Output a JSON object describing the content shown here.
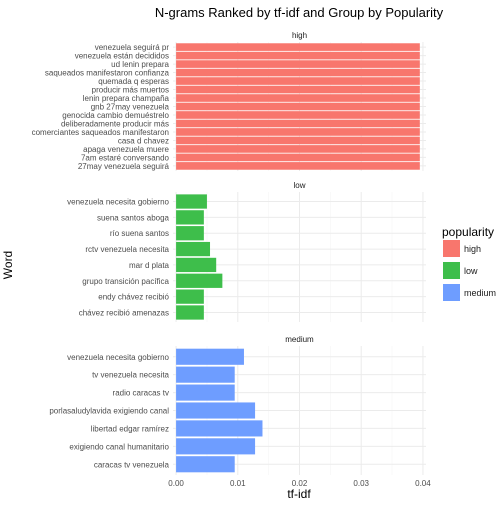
{
  "chart_data": {
    "type": "bar",
    "orientation": "horizontal",
    "title": "N-grams Ranked by tf-idf and Group by Popularity",
    "xlabel": "tf-idf",
    "ylabel": "Word",
    "xlim": [
      -0.0005,
      0.0405
    ],
    "x_ticks": [
      0.0,
      0.01,
      0.02,
      0.03,
      0.04
    ],
    "x_tick_labels": [
      "0.00",
      "0.01",
      "0.02",
      "0.03",
      "0.04"
    ],
    "grid": true,
    "legend": {
      "title": "popularity",
      "position": "right",
      "entries": [
        {
          "label": "high",
          "color": "#F8766D"
        },
        {
          "label": "low",
          "color": "#3EBE4B"
        },
        {
          "label": "medium",
          "color": "#6E9DFF"
        }
      ]
    },
    "panels": [
      {
        "strip": "high",
        "color": "#F8766D",
        "categories": [
          "venezuela seguirá pr",
          "venezuela están decididos",
          "ud lenin prepara",
          "saqueados manifestaron confianza",
          "quemada q esperas",
          "producir más muertos",
          "lenin prepara champaña",
          "gnb 27may venezuela",
          "genocida cambio demuéstrelo",
          "deliberadamente producir más",
          "comerciantes saqueados manifestaron",
          "casa d chavez",
          "apaga venezuela muere",
          "7am estaré conversando",
          "27may venezuela seguirá"
        ],
        "values": [
          0.0395,
          0.0395,
          0.0395,
          0.0395,
          0.0395,
          0.0395,
          0.0395,
          0.0395,
          0.0395,
          0.0395,
          0.0395,
          0.0395,
          0.0395,
          0.0395,
          0.0395
        ]
      },
      {
        "strip": "low",
        "color": "#3EBE4B",
        "categories": [
          "venezuela necesita gobierno",
          "suena santos aboga",
          "río suena santos",
          "rctv venezuela necesita",
          "mar d plata",
          "grupo transición pacífica",
          "endy chávez recibió",
          "chávez recibió amenazas"
        ],
        "values": [
          0.005,
          0.0045,
          0.0045,
          0.0055,
          0.0065,
          0.0075,
          0.0045,
          0.0045
        ]
      },
      {
        "strip": "medium",
        "color": "#6E9DFF",
        "categories": [
          "venezuela necesita gobierno",
          "tv venezuela necesita",
          "radio caracas tv",
          "porlasaludylavida exigiendo canal",
          "libertad edgar ramírez",
          "exigiendo canal humanitario",
          "caracas tv venezuela"
        ],
        "values": [
          0.011,
          0.0095,
          0.0095,
          0.0128,
          0.014,
          0.0128,
          0.0095
        ]
      }
    ]
  }
}
